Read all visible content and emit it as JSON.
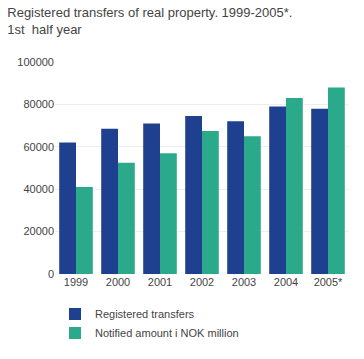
{
  "chart_data": {
    "type": "bar",
    "title": "Registered transfers of real property. 1999-2005*.",
    "subtitle": "1st  half year",
    "categories": [
      "1999",
      "2000",
      "2001",
      "2002",
      "2003",
      "2004",
      "2005*"
    ],
    "series": [
      {
        "name": "Registered transfers",
        "color": "#1f3f8f",
        "values": [
          62000,
          68500,
          71000,
          74500,
          72000,
          79000,
          78000
        ]
      },
      {
        "name": "Notified amount i NOK million",
        "color": "#2aaa8a",
        "values": [
          41000,
          52500,
          57000,
          67500,
          65000,
          83000,
          88000
        ]
      }
    ],
    "ylim": [
      0,
      100000
    ],
    "yticks": [
      0,
      20000,
      40000,
      60000,
      80000,
      100000
    ],
    "grid": true,
    "legend": "bottom"
  }
}
